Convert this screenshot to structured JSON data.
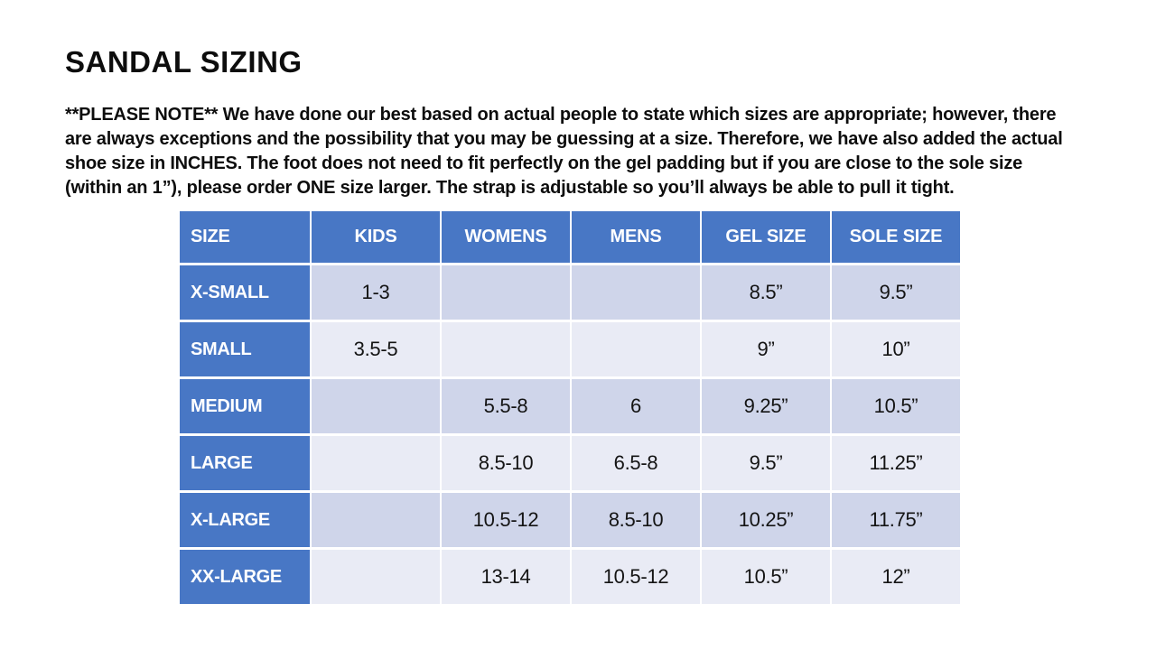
{
  "page": {
    "title": "SANDAL SIZING",
    "note": "**PLEASE NOTE**   We have done our best based on actual people to state which sizes are appropriate; however, there are always exceptions and the possibility that you may be guessing at a size.  Therefore, we have also added the actual shoe size in INCHES.  The foot does not need to fit perfectly on the gel padding but if you are close to the sole size (within an 1”), please order ONE size larger.  The strap is adjustable so you’ll always be able to pull it tight."
  },
  "colors": {
    "header_blue": "#4877C5",
    "row_shaded": "#CFD5EA",
    "row_light": "#E9EBF5"
  },
  "table": {
    "headers": [
      "SIZE",
      "KIDS",
      "WOMENS",
      "MENS",
      "GEL SIZE",
      "SOLE SIZE"
    ],
    "rows": [
      [
        "X-SMALL",
        "1-3",
        "",
        "",
        "8.5”",
        "9.5”"
      ],
      [
        "SMALL",
        "3.5-5",
        "",
        "",
        "9”",
        "10”"
      ],
      [
        "MEDIUM",
        "",
        "5.5-8",
        "6",
        "9.25”",
        "10.5”"
      ],
      [
        "LARGE",
        "",
        "8.5-10",
        "6.5-8",
        "9.5”",
        "11.25”"
      ],
      [
        "X-LARGE",
        "",
        "10.5-12",
        "8.5-10",
        "10.25”",
        "11.75”"
      ],
      [
        "XX-LARGE",
        "",
        "13-14",
        "10.5-12",
        "10.5”",
        "12”"
      ]
    ]
  }
}
